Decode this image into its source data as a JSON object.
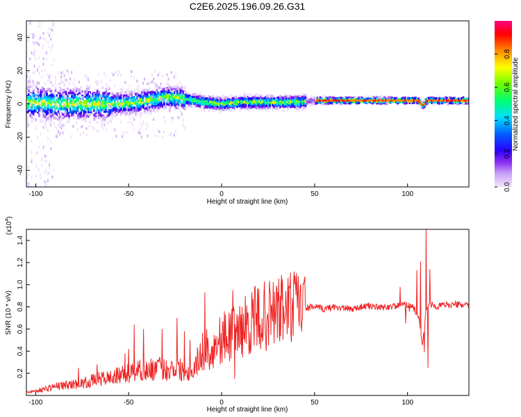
{
  "page": {
    "title": "C2E6.2025.196.09.26.G31"
  },
  "colors": {
    "snr_line": "#ee2222",
    "frame": "#000000",
    "colormap": [
      "#e7d6f7",
      "#b27cf0",
      "#7a12f0",
      "#1e00ff",
      "#0078ff",
      "#00e5ff",
      "#00ff6a",
      "#7dff00",
      "#fff200",
      "#ff8a00",
      "#ff0000",
      "#ff007a"
    ]
  },
  "chart_data": [
    {
      "type": "heatmap",
      "title": "C2E6.2025.196.09.26.G31",
      "xlabel": "Height of straight line (km)",
      "ylabel": "Frequency (Hz)",
      "xlim": [
        -105,
        133
      ],
      "ylim": [
        -50,
        50
      ],
      "x_ticks": [
        -100,
        -50,
        0,
        50,
        100
      ],
      "y_ticks": [
        -40,
        -20,
        0,
        20,
        40
      ],
      "grid": false,
      "colorbar": {
        "label": "Normalized spectral amplitude",
        "range": [
          0,
          1
        ],
        "ticks": [
          0.0,
          0.2,
          0.4,
          0.6,
          0.8
        ]
      },
      "ridge": {
        "description_free": true,
        "x": [
          -105,
          -90,
          -75,
          -60,
          -45,
          -35,
          -30,
          -20,
          -10,
          0,
          10,
          20,
          30,
          40,
          50,
          60,
          80,
          100,
          105,
          108,
          110,
          120,
          133
        ],
        "freq": [
          1,
          0,
          0,
          0,
          1,
          3,
          4,
          3,
          1,
          0,
          1,
          1,
          1,
          1,
          2,
          2,
          2,
          2,
          2,
          -1,
          2,
          2,
          2
        ]
      }
    },
    {
      "type": "line",
      "xlabel": "Height of straight line (km)",
      "ylabel": "SNR (10 * v/v)",
      "y_scale_label": "(x10^4)",
      "y_scale_label_main": "(x10",
      "y_scale_label_exp": "4",
      "y_scale_label_close": ")",
      "xlim": [
        -105,
        133
      ],
      "ylim": [
        0,
        1.5
      ],
      "x_ticks": [
        -100,
        -50,
        0,
        50,
        100
      ],
      "y_ticks": [
        0.2,
        0.4,
        0.6,
        0.8,
        1.0,
        1.2,
        1.4
      ],
      "grid": false,
      "series": [
        {
          "x": [
            -105,
            -100,
            -95,
            -90,
            -85,
            -80,
            -75,
            -70,
            -65,
            -60,
            -55,
            -50,
            -45,
            -40,
            -35,
            -30,
            -25,
            -20,
            -15,
            -10,
            -5,
            0,
            5,
            10,
            15,
            20,
            25,
            30,
            35,
            40,
            45,
            50,
            55,
            60,
            65,
            70,
            75,
            80,
            85,
            90,
            95,
            100,
            103,
            106,
            108,
            110,
            112,
            115,
            120,
            125,
            133
          ],
          "values": [
            0.03,
            0.04,
            0.06,
            0.08,
            0.09,
            0.1,
            0.11,
            0.13,
            0.15,
            0.16,
            0.18,
            0.2,
            0.23,
            0.22,
            0.25,
            0.23,
            0.26,
            0.22,
            0.25,
            0.4,
            0.42,
            0.52,
            0.55,
            0.6,
            0.65,
            0.7,
            0.72,
            0.76,
            0.78,
            0.8,
            0.79,
            0.8,
            0.78,
            0.8,
            0.79,
            0.78,
            0.8,
            0.81,
            0.79,
            0.8,
            0.81,
            0.82,
            0.8,
            0.7,
            0.45,
            0.78,
            0.83,
            0.8,
            0.82,
            0.82,
            0.82
          ]
        }
      ],
      "spikes": {
        "x": [
          -77,
          -67,
          -52,
          -50,
          -47,
          -42,
          -32,
          -24,
          -20,
          -17,
          -9,
          -8,
          -6,
          6,
          7,
          10,
          35,
          38,
          42,
          96,
          99,
          101,
          105,
          107,
          109,
          110,
          111,
          112
        ],
        "values": [
          0.25,
          0.28,
          0.38,
          0.42,
          0.64,
          0.6,
          0.6,
          0.7,
          0.58,
          0.5,
          0.93,
          0.6,
          0.35,
          0.95,
          0.15,
          0.7,
          0.76,
          0.88,
          0.85,
          0.98,
          0.65,
          0.76,
          1.13,
          1.21,
          0.39,
          1.5,
          0.25,
          1.14
        ]
      }
    }
  ]
}
